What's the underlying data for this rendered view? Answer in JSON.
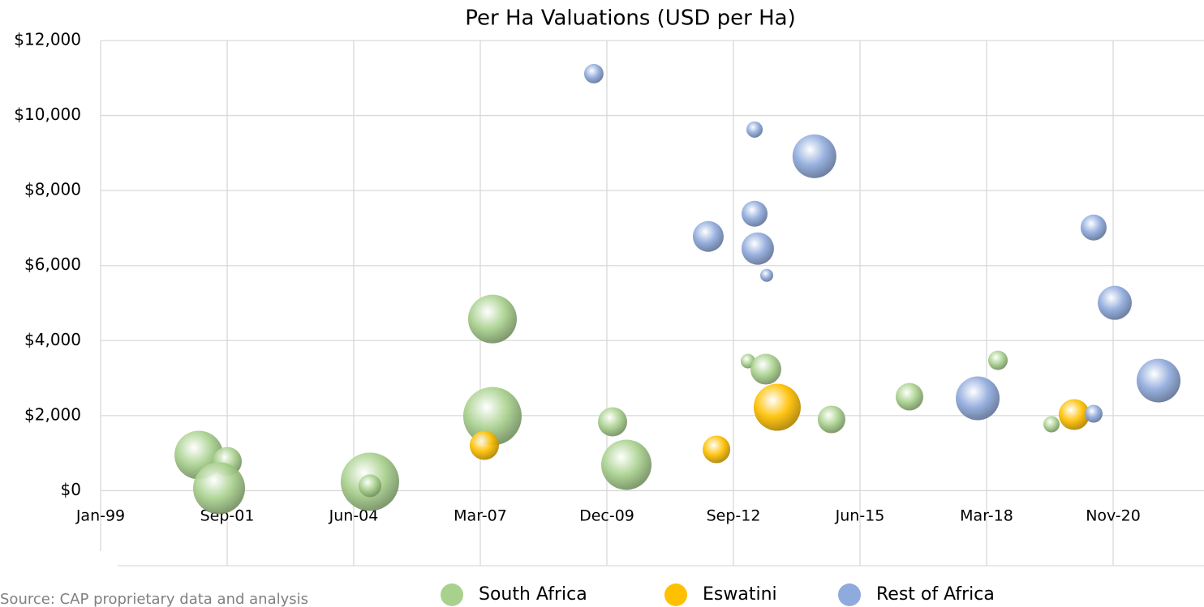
{
  "chart_data": {
    "type": "bubble",
    "title": "Per Ha Valuations (USD per Ha)",
    "source": "Source: CAP proprietary data and analysis",
    "grid": true,
    "legend": "bottom",
    "xlim": [
      36161,
      44879
    ],
    "xticks": [
      {
        "value": 36161,
        "label": "Jan-99"
      },
      {
        "value": 37161,
        "label": "Sep-01"
      },
      {
        "value": 38161,
        "label": "Jun-04"
      },
      {
        "value": 39161,
        "label": "Mar-07"
      },
      {
        "value": 40161,
        "label": "Dec-09"
      },
      {
        "value": 41161,
        "label": "Sep-12"
      },
      {
        "value": 42161,
        "label": "Jun-15"
      },
      {
        "value": 43161,
        "label": "Mar-18"
      },
      {
        "value": 44161,
        "label": "Nov-20"
      }
    ],
    "ylim": [
      -2000,
      12000
    ],
    "yticks": [
      {
        "value": 0,
        "label": "$0"
      },
      {
        "value": 2000,
        "label": "$2,000"
      },
      {
        "value": 4000,
        "label": "$4,000"
      },
      {
        "value": 6000,
        "label": "$6,000"
      },
      {
        "value": 8000,
        "label": "$8,000"
      },
      {
        "value": 10000,
        "label": "$10,000"
      },
      {
        "value": 12000,
        "label": "$12,000"
      }
    ],
    "series": [
      {
        "name": "South Africa",
        "color": "#a9d18e",
        "x": [
          36937,
          37161,
          37097,
          38289,
          38289,
          39257,
          39257,
          40206,
          40315,
          41276,
          41417,
          41936,
          42552,
          43251,
          43674
        ],
        "values": [
          950,
          777,
          65,
          237,
          130,
          4576,
          1986,
          1835,
          691,
          3453,
          3238,
          1900,
          2504,
          3475,
          1770
        ],
        "sizes": [
          900,
          324,
          1024,
          1296,
          196,
          900,
          1296,
          324,
          961,
          81,
          361,
          289,
          289,
          144,
          100
        ]
      },
      {
        "name": "Eswatini",
        "color": "#ffc000",
        "x": [
          39193,
          41027,
          41507,
          43853
        ],
        "values": [
          1209,
          1100,
          2223,
          2029
        ],
        "sizes": [
          324,
          289,
          841,
          361
        ]
      },
      {
        "name": "Rest of Africa",
        "color": "#8faadc",
        "x": [
          40058,
          40962,
          41328,
          41328,
          41353,
          41424,
          41801,
          43091,
          44007,
          44174,
          44007,
          44520
        ],
        "values": [
          11116,
          6777,
          9627,
          7382,
          6454,
          5741,
          8914,
          2461,
          7015,
          5007,
          2050,
          2935
        ],
        "sizes": [
          144,
          361,
          100,
          256,
          400,
          64,
          729,
          729,
          256,
          441,
          121,
          729
        ]
      }
    ]
  }
}
